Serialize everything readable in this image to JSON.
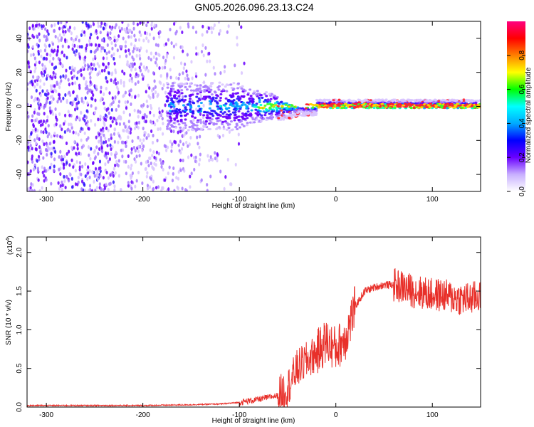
{
  "title": "GN05.2026.096.23.13.C24",
  "chart_data": [
    {
      "type": "heatmap",
      "title": "GN05.2026.096.23.13.C24",
      "xlabel": "Height of straight line (km)",
      "ylabel": "Frequency (Hz)",
      "xlim": [
        -320,
        150
      ],
      "ylim": [
        -50,
        50
      ],
      "xticks": [
        -300,
        -200,
        -100,
        0,
        100
      ],
      "yticks": [
        -40,
        -20,
        0,
        20,
        40
      ],
      "colorbar": {
        "label": "Normalized spectral amplitude",
        "ticks": [
          0.0,
          0.2,
          0.4,
          0.6,
          0.8
        ],
        "range": [
          0,
          1
        ],
        "colors": [
          "#ffffff",
          "#c8b0ff",
          "#6a00ff",
          "#0000ff",
          "#00aaff",
          "#00ffff",
          "#00ff00",
          "#ffff00",
          "#ff8000",
          "#ff0000",
          "#ff0080"
        ]
      },
      "description_values": {
        "noise_region_km": [
          -320,
          -100
        ],
        "signal_start_km": -170,
        "signal_center_hz": 0
      }
    },
    {
      "type": "line",
      "xlabel": "Height of straight line (km)",
      "ylabel": "SNR (10 * v/v)",
      "yscale_label": "(x10",
      "yscale_exp": "4",
      "xlim": [
        -320,
        150
      ],
      "ylim": [
        0,
        2.2
      ],
      "xticks": [
        -300,
        -200,
        -100,
        0,
        100
      ],
      "yticks": [
        0.0,
        0.5,
        1.0,
        1.5,
        2.0
      ],
      "series": [
        {
          "name": "SNR",
          "color": "#e8302a",
          "x": [
            -320,
            -200,
            -150,
            -120,
            -100,
            -80,
            -60,
            -50,
            -40,
            -30,
            -20,
            -10,
            0,
            10,
            20,
            30,
            40,
            50,
            60,
            70,
            80,
            90,
            100,
            110,
            120,
            130,
            140,
            150
          ],
          "y": [
            0.02,
            0.02,
            0.03,
            0.04,
            0.06,
            0.1,
            0.15,
            0.25,
            0.5,
            0.6,
            0.7,
            0.85,
            0.75,
            0.9,
            1.3,
            1.5,
            1.55,
            1.58,
            1.58,
            1.55,
            1.5,
            1.48,
            1.45,
            1.45,
            1.42,
            1.4,
            1.4,
            1.45
          ]
        }
      ]
    }
  ]
}
